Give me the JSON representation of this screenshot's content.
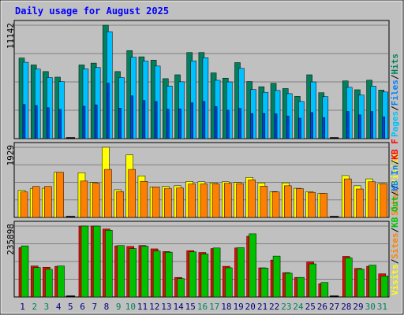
{
  "chart_data": {
    "type": "bar",
    "title": "Daily usage for August 2025",
    "categories": [
      "1",
      "2",
      "3",
      "4",
      "5",
      "6",
      "7",
      "8",
      "9",
      "10",
      "11",
      "12",
      "13",
      "14",
      "15",
      "16",
      "17",
      "18",
      "19",
      "20",
      "21",
      "22",
      "23",
      "24",
      "25",
      "26",
      "27",
      "28",
      "29",
      "30",
      "31"
    ],
    "weekend_days": [
      "2",
      "3",
      "9",
      "10",
      "16",
      "17",
      "23",
      "24",
      "30",
      "31"
    ],
    "colors": {
      "title": "#0000ff",
      "background": "#c0c0c0",
      "frame": "#d0d0d0",
      "grid": "#808080",
      "hits": "#00805c",
      "files": "#00c0ff",
      "pages": "#0040ff",
      "visits": "#ffff00",
      "sites": "#ff8000",
      "kbin": "#ff0000",
      "kbout": "#00c000",
      "weekday_label": "#000080",
      "weekend_label": "#00805c"
    },
    "panels": [
      {
        "id": "hits-files-pages",
        "max_label": "11142",
        "ylim": [
          0,
          11142
        ],
        "legend": [
          {
            "text": "Hits",
            "color": "#00805c"
          },
          {
            "text": "/",
            "color": "#000000"
          },
          {
            "text": "Files",
            "color": "#0080ff"
          },
          {
            "text": "/",
            "color": "#000000"
          },
          {
            "text": "Pages",
            "color": "#00c0ff"
          }
        ],
        "series": [
          {
            "name": "Hits",
            "values": [
              7920,
              7240,
              6590,
              6040,
              0,
              7240,
              7420,
              11142,
              6590,
              8650,
              8040,
              7710,
              5890,
              6270,
              8460,
              8460,
              6460,
              5940,
              7470,
              5610,
              5100,
              5440,
              4920,
              4150,
              6270,
              4510,
              0,
              5670,
              4800,
              5740,
              4770
            ]
          },
          {
            "name": "Files",
            "values": [
              7500,
              6830,
              6000,
              5600,
              0,
              6850,
              6990,
              10500,
              6000,
              8000,
              7620,
              7130,
              5170,
              5580,
              7640,
              7950,
              5730,
              5570,
              6900,
              4820,
              4550,
              4730,
              4420,
              3650,
              5570,
              4120,
              0,
              5040,
              4280,
              5150,
              4580
            ]
          },
          {
            "name": "Pages",
            "values": [
              3350,
              3250,
              3030,
              2870,
              0,
              3180,
              3320,
              5450,
              2990,
              4200,
              3740,
              3650,
              2880,
              2930,
              3520,
              3650,
              3150,
              2790,
              2970,
              2460,
              2470,
              2430,
              2220,
              2010,
              2560,
              2060,
              0,
              2670,
              2330,
              2660,
              2130
            ]
          }
        ]
      },
      {
        "id": "visits-sites",
        "max_label": "1929",
        "ylim": [
          0,
          1929
        ],
        "legend": [
          {
            "text": "Visits",
            "color": "#ffff00"
          },
          {
            "text": "/",
            "color": "#000000"
          },
          {
            "text": "Sites",
            "color": "#ff8000"
          }
        ],
        "series": [
          {
            "name": "Visits",
            "values": [
              740,
              790,
              800,
              1240,
              0,
              1230,
              960,
              1929,
              760,
              1720,
              1140,
              840,
              850,
              870,
              990,
              980,
              950,
              980,
              960,
              1100,
              950,
              710,
              950,
              800,
              710,
              660,
              0,
              1150,
              870,
              1060,
              930
            ]
          },
          {
            "name": "Sites",
            "values": [
              700,
              850,
              850,
              1240,
              0,
              1000,
              940,
              1320,
              710,
              1320,
              990,
              840,
              800,
              810,
              920,
              920,
              920,
              940,
              930,
              1030,
              860,
              700,
              870,
              790,
              690,
              660,
              0,
              1060,
              780,
              980,
              930
            ]
          }
        ]
      },
      {
        "id": "kbin-kbout",
        "max_label": "235898",
        "ylim": [
          0,
          235898
        ],
        "legend": [
          {
            "text": "KB F",
            "color": "#ff0000"
          },
          {
            "text": "/",
            "color": "#000000"
          },
          {
            "text": "KB In",
            "color": "#0080ff"
          },
          {
            "text": "/",
            "color": "#000000"
          },
          {
            "text": "KB Out",
            "color": "#00c000"
          },
          {
            "text": "/",
            "color": "#000000"
          },
          {
            "text": "Sites",
            "color": "#ff8000"
          },
          {
            "text": "/",
            "color": "#000000"
          },
          {
            "text": "Visits",
            "color": "#ffff00"
          }
        ],
        "series": [
          {
            "name": "KB F",
            "values": [
              164000,
              103000,
              99000,
              102000,
              0,
              235898,
              235898,
              226000,
              170000,
              168000,
              171000,
              160000,
              151000,
              65000,
              154000,
              148000,
              161000,
              102000,
              163000,
              202000,
              97000,
              123000,
              81000,
              65000,
              116000,
              44000,
              0,
              135000,
              95000,
              102000,
              77000
            ]
          },
          {
            "name": "KB Out",
            "values": [
              170000,
              98000,
              92000,
              103000,
              0,
              235898,
              235898,
              222000,
              171000,
              161000,
              169000,
              153000,
              149000,
              61000,
              150000,
              143000,
              163000,
              97000,
              164000,
              210000,
              96000,
              136000,
              79000,
              65000,
              110000,
              48000,
              0,
              130000,
              92000,
              106000,
              70000
            ]
          }
        ]
      }
    ]
  }
}
